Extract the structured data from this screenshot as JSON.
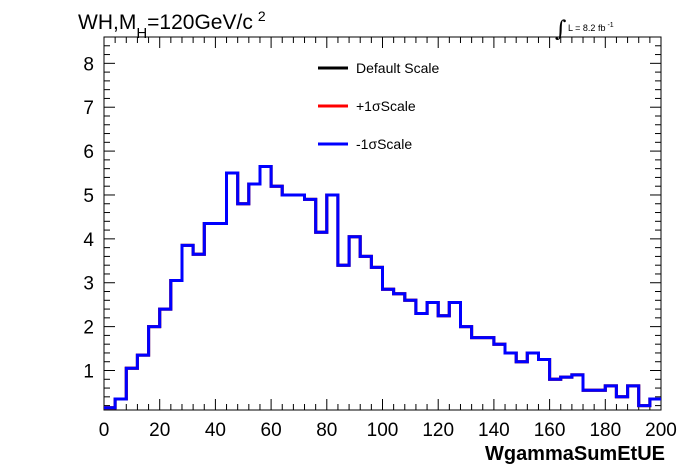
{
  "chart_data": {
    "type": "line",
    "title_parts": {
      "main": "WH,M",
      "sub": "H",
      "mid": "=120GeV/c",
      "sup": "2"
    },
    "lumi": {
      "integral": "∫",
      "text": "L = 8.2 fb",
      "exp": "-1"
    },
    "xlabel": "WgammaSumEtUE",
    "ylabel": "",
    "xlim": [
      0,
      200
    ],
    "ylim": [
      0.1,
      8.6
    ],
    "x_ticks": [
      0,
      20,
      40,
      60,
      80,
      100,
      120,
      140,
      160,
      180,
      200
    ],
    "y_ticks": [
      1,
      2,
      3,
      4,
      5,
      6,
      7,
      8
    ],
    "bin_width": 4,
    "bin_edges_start": 0,
    "legend": {
      "position": "top-center"
    },
    "series": [
      {
        "name": "Default Scale",
        "color": "#000000",
        "values": [
          0.15,
          0.35,
          1.05,
          1.35,
          2.0,
          2.4,
          3.05,
          3.85,
          3.65,
          4.35,
          4.35,
          5.5,
          4.8,
          5.25,
          5.65,
          5.2,
          5.0,
          5.0,
          4.9,
          4.15,
          5.0,
          3.4,
          4.05,
          3.6,
          3.35,
          2.85,
          2.75,
          2.6,
          2.3,
          2.55,
          2.25,
          2.55,
          2.0,
          1.75,
          1.75,
          1.6,
          1.4,
          1.2,
          1.4,
          1.25,
          0.8,
          0.85,
          0.9,
          0.55,
          0.55,
          0.65,
          0.4,
          0.65,
          0.2,
          0.35
        ]
      },
      {
        "name": "+1σScale",
        "color": "#ff0000",
        "values": [
          0.15,
          0.35,
          1.05,
          1.35,
          2.0,
          2.4,
          3.05,
          3.85,
          3.65,
          4.35,
          4.35,
          5.5,
          4.8,
          5.25,
          5.65,
          5.2,
          5.0,
          5.0,
          4.9,
          4.15,
          5.0,
          3.4,
          4.05,
          3.6,
          3.35,
          2.85,
          2.75,
          2.6,
          2.3,
          2.55,
          2.25,
          2.55,
          2.0,
          1.75,
          1.75,
          1.6,
          1.4,
          1.2,
          1.4,
          1.25,
          0.8,
          0.85,
          0.9,
          0.55,
          0.55,
          0.65,
          0.4,
          0.65,
          0.2,
          0.35
        ]
      },
      {
        "name": "-1σScale",
        "color": "#0000ff",
        "values": [
          0.15,
          0.35,
          1.05,
          1.35,
          2.0,
          2.4,
          3.05,
          3.85,
          3.65,
          4.35,
          4.35,
          5.5,
          4.8,
          5.25,
          5.65,
          5.2,
          5.0,
          5.0,
          4.9,
          4.15,
          5.0,
          3.4,
          4.05,
          3.6,
          3.35,
          2.85,
          2.75,
          2.6,
          2.3,
          2.55,
          2.25,
          2.55,
          2.0,
          1.75,
          1.75,
          1.6,
          1.4,
          1.2,
          1.4,
          1.25,
          0.8,
          0.85,
          0.9,
          0.55,
          0.55,
          0.65,
          0.4,
          0.65,
          0.2,
          0.35
        ]
      }
    ]
  }
}
